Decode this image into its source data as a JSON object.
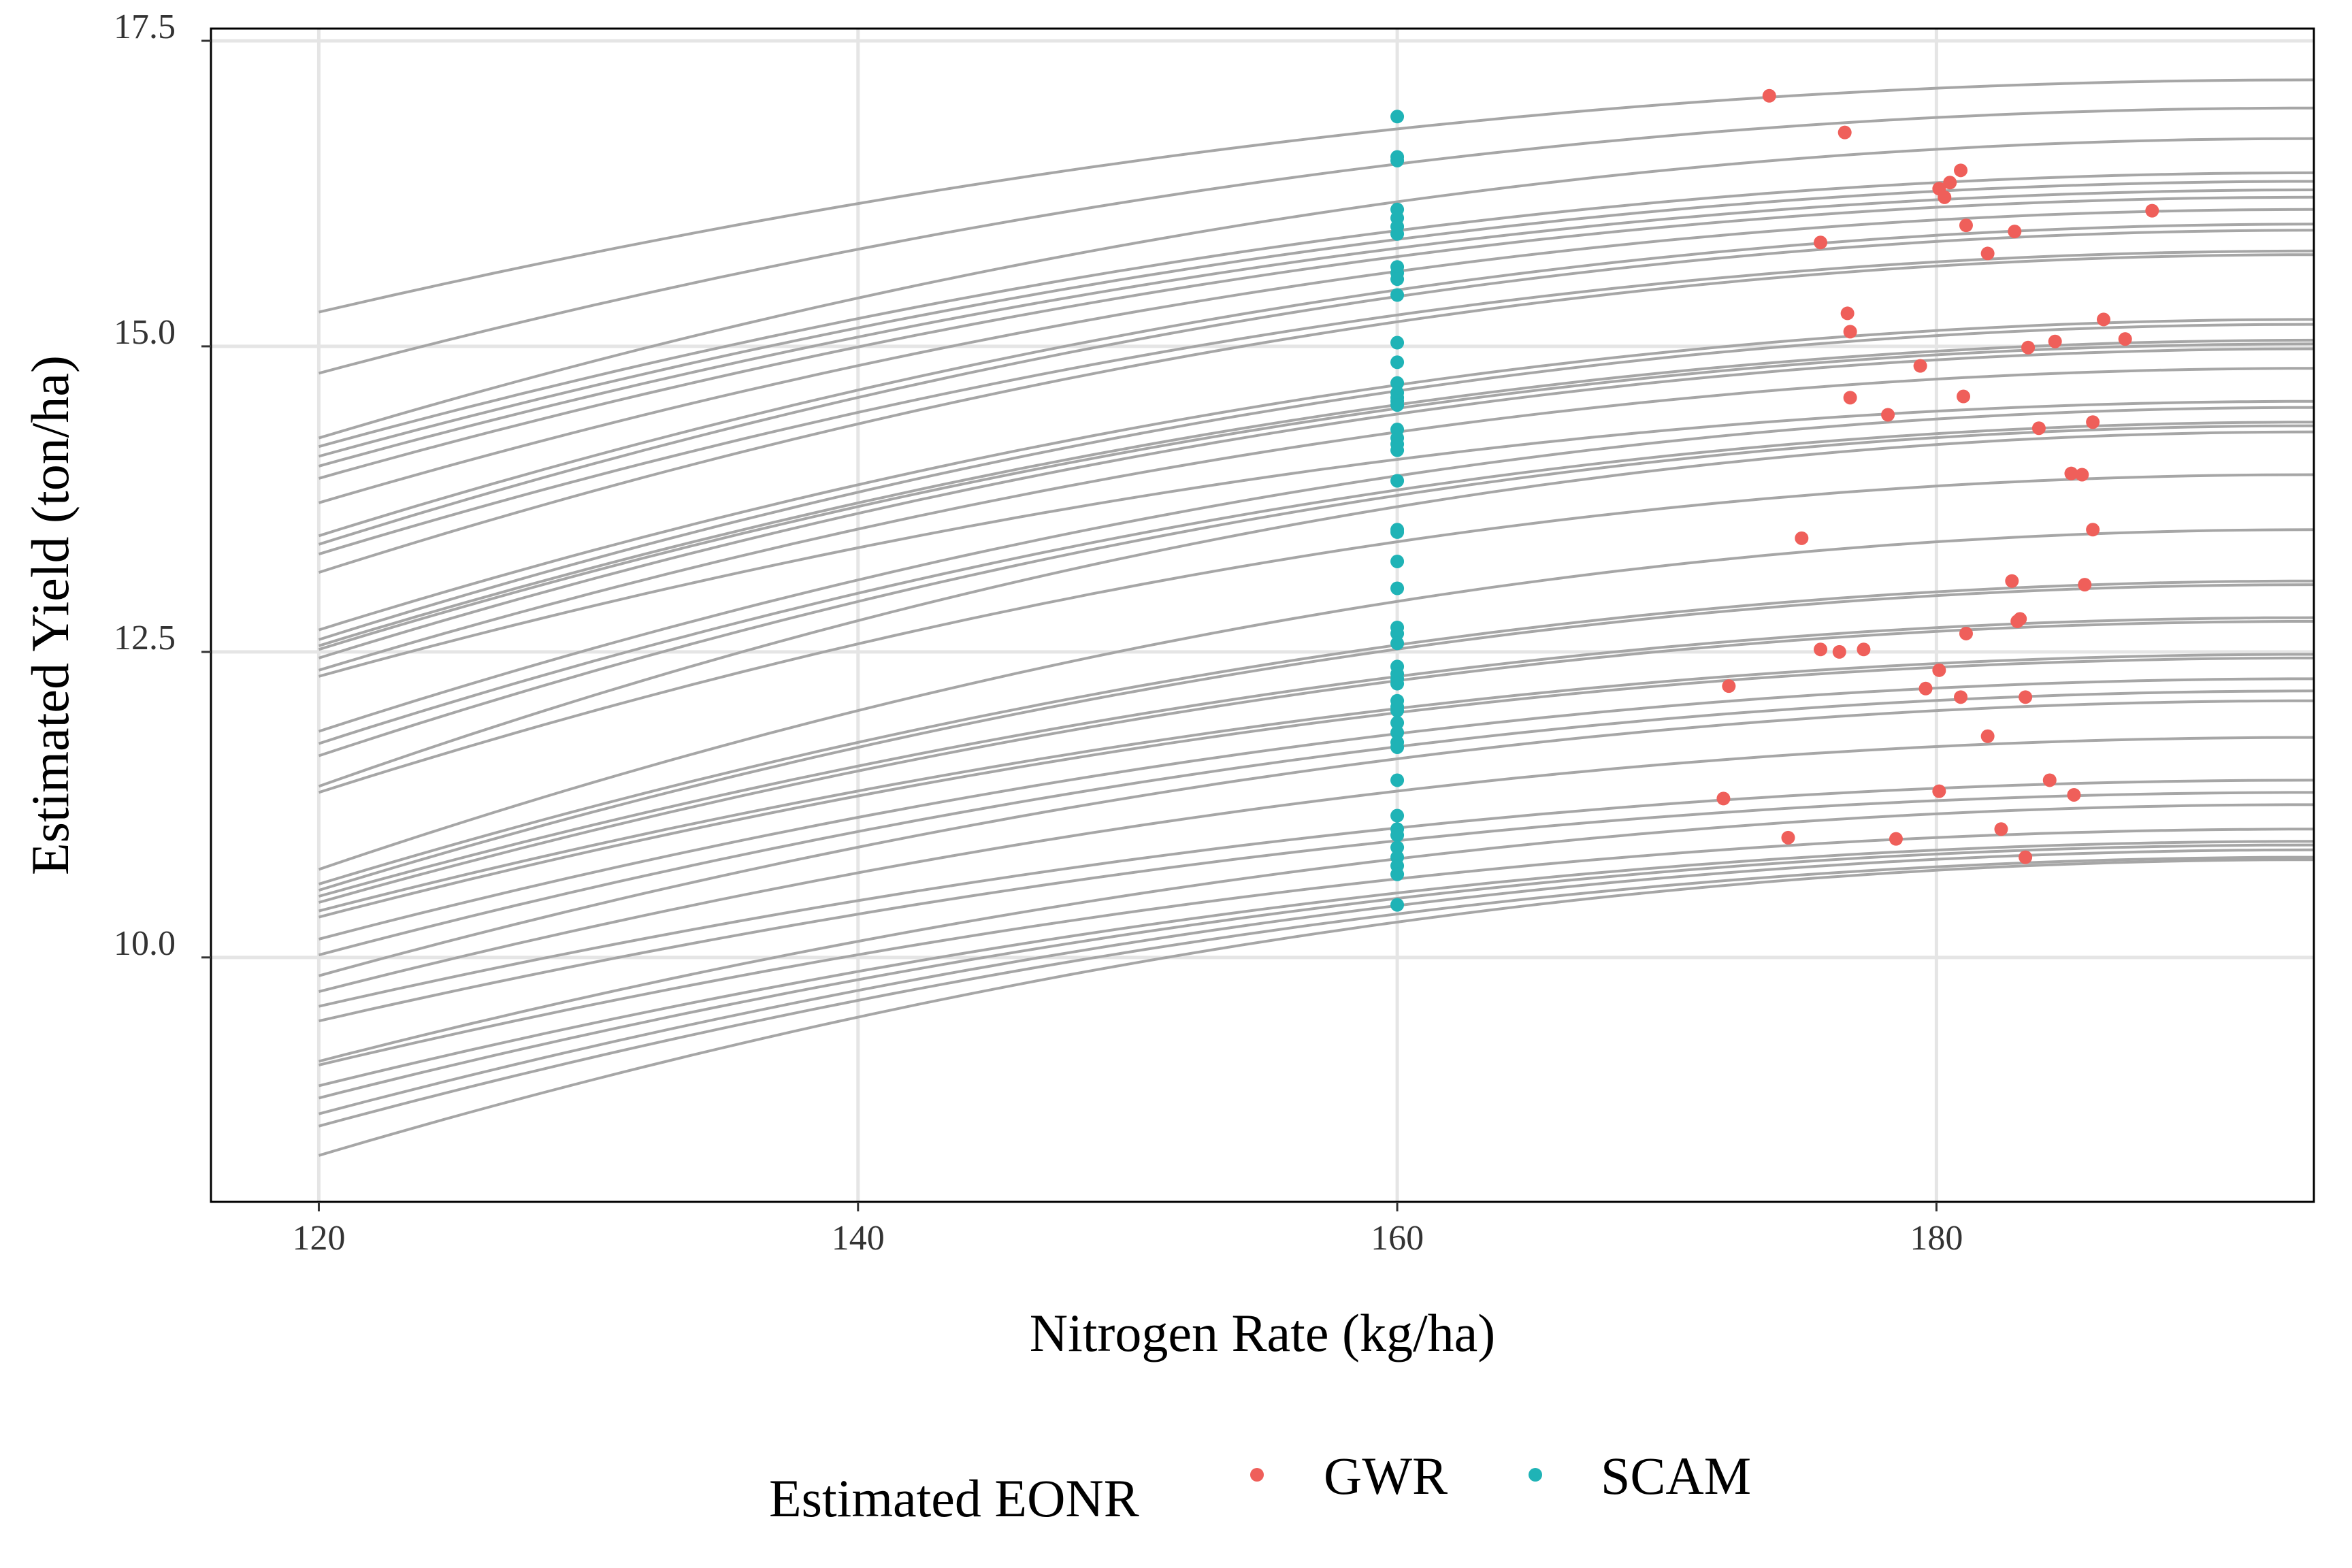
{
  "chart_data": {
    "type": "scatter",
    "title": "",
    "xlabel": "Nitrogen Rate (kg/ha)",
    "ylabel": "Estimated Yield (ton/ha)",
    "xlim": [
      116,
      194
    ],
    "ylim": [
      8.0,
      17.6
    ],
    "xticks": [
      120,
      140,
      160,
      180
    ],
    "yticks": [
      10.0,
      12.5,
      15.0,
      17.5
    ],
    "xtick_labels": [
      "120",
      "140",
      "160",
      "180"
    ],
    "ytick_labels": [
      "10.0",
      "12.5",
      "15.0",
      "17.5"
    ],
    "grid": true,
    "legend": {
      "title": "Estimated EONR",
      "position": "bottom",
      "entries": [
        "GWR",
        "SCAM"
      ]
    },
    "colors": {
      "curve": "#a6a6a6",
      "grid": "#e5e5e5",
      "axis": "#000000",
      "GWR": "#ef5f5a",
      "SCAM": "#1fb3b6"
    },
    "curve_x_range": [
      120,
      194
    ],
    "curve_peak_rate_kg_ha": 194,
    "curves_start_yield": [
      15.28,
      14.78,
      14.25,
      14.18,
      14.1,
      14.02,
      13.92,
      13.72,
      13.45,
      13.38,
      13.3,
      13.15,
      12.68,
      12.6,
      12.55,
      12.52,
      12.45,
      12.35,
      12.3,
      11.85,
      11.75,
      11.65,
      11.4,
      11.35,
      10.72,
      10.6,
      10.55,
      10.5,
      10.45,
      10.38,
      10.33,
      10.15,
      10.02,
      9.85,
      9.72,
      9.6,
      9.48,
      9.15,
      9.12,
      8.95,
      8.85,
      8.72,
      8.62,
      8.38
    ],
    "curves_end_yield": [
      17.18,
      16.95,
      16.7,
      16.42,
      16.35,
      16.28,
      16.22,
      16.12,
      16.0,
      15.95,
      15.78,
      15.75,
      15.22,
      15.18,
      15.05,
      15.02,
      14.98,
      14.82,
      14.55,
      14.5,
      14.38,
      14.35,
      14.3,
      13.95,
      13.5,
      13.08,
      13.05,
      12.78,
      12.75,
      12.48,
      12.45,
      12.28,
      12.18,
      12.1,
      11.8,
      11.45,
      11.35,
      11.25,
      11.05,
      10.95,
      10.92,
      10.88,
      10.82,
      10.8
    ],
    "series": [
      {
        "name": "GWR",
        "x": [
          173.8,
          176.6,
          180.9,
          180.5,
          180.1,
          180.3,
          188.0,
          181.1,
          182.9,
          175.7,
          181.9,
          176.7,
          186.2,
          176.8,
          187.0,
          184.4,
          183.4,
          179.4,
          176.8,
          181.0,
          178.2,
          185.8,
          183.8,
          185.0,
          185.4,
          185.8,
          175.0,
          182.8,
          185.5,
          183.1,
          183.0,
          181.1,
          175.7,
          176.4,
          177.3,
          180.1,
          172.3,
          179.6,
          180.9,
          183.3,
          181.9,
          184.2,
          180.1,
          172.1,
          185.1,
          182.4,
          174.5,
          178.5,
          183.3
        ],
        "y": [
          17.05,
          16.75,
          16.44,
          16.34,
          16.29,
          16.22,
          16.11,
          15.99,
          15.94,
          15.85,
          15.76,
          15.27,
          15.22,
          15.12,
          15.06,
          15.04,
          14.99,
          14.84,
          14.58,
          14.59,
          14.44,
          14.38,
          14.33,
          13.96,
          13.95,
          13.5,
          13.43,
          13.08,
          13.05,
          12.77,
          12.75,
          12.65,
          12.52,
          12.5,
          12.52,
          12.35,
          12.22,
          12.2,
          12.13,
          12.13,
          11.81,
          11.45,
          11.36,
          11.3,
          11.33,
          11.05,
          10.98,
          10.97,
          10.82
        ]
      },
      {
        "name": "SCAM",
        "x": [
          160,
          160,
          160,
          160,
          160,
          160,
          160,
          160,
          160,
          160,
          160,
          160,
          160,
          160,
          160,
          160,
          160,
          160,
          160,
          160,
          160,
          160,
          160,
          160,
          160,
          160,
          160,
          160,
          160,
          160,
          160,
          160,
          160,
          160,
          160,
          160,
          160,
          160,
          160,
          160,
          160,
          160,
          160,
          160,
          160,
          160,
          160,
          160,
          160,
          160
        ],
        "y": [
          16.88,
          16.55,
          16.52,
          16.12,
          16.05,
          15.98,
          15.92,
          15.65,
          15.6,
          15.55,
          15.42,
          15.03,
          14.87,
          14.7,
          14.62,
          14.58,
          14.55,
          14.52,
          14.32,
          14.25,
          14.2,
          14.15,
          13.9,
          13.5,
          13.48,
          13.24,
          13.02,
          12.7,
          12.65,
          12.57,
          12.38,
          12.32,
          12.28,
          12.24,
          12.1,
          12.05,
          12.02,
          11.92,
          11.84,
          11.76,
          11.72,
          11.45,
          11.16,
          11.05,
          11.0,
          10.9,
          10.82,
          10.75,
          10.68,
          10.43
        ]
      }
    ]
  }
}
